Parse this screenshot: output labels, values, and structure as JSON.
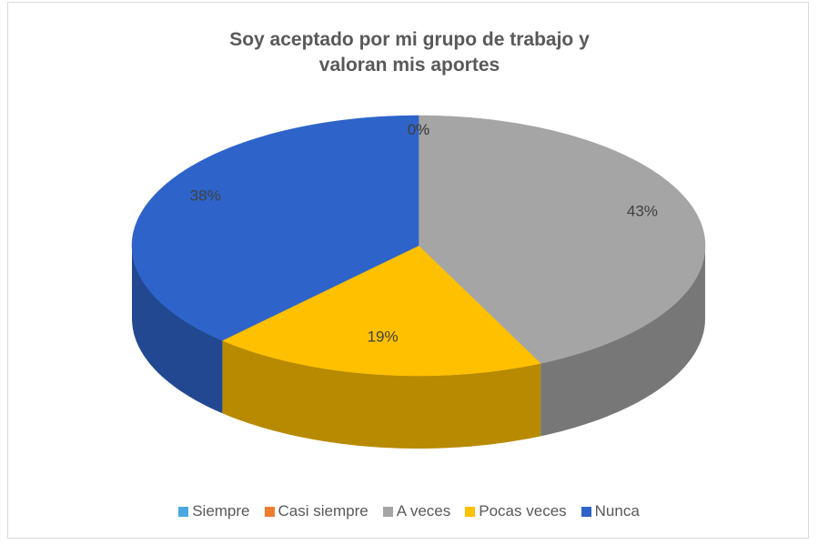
{
  "chart_data": {
    "type": "pie3d",
    "title": "Soy aceptado por mi grupo de trabajo y valoran mis aportes",
    "categories": [
      "Siempre",
      "Casi siempre",
      "A veces",
      "Pocas veces",
      "Nunca"
    ],
    "values": [
      0,
      0,
      43,
      19,
      38
    ],
    "value_labels": [
      "0%",
      "0%",
      "43%",
      "19%",
      "38%"
    ],
    "colors": [
      "#4aa8e0",
      "#ed7d31",
      "#a5a5a5",
      "#ffc000",
      "#2e64c9"
    ],
    "legend": "bottom"
  }
}
